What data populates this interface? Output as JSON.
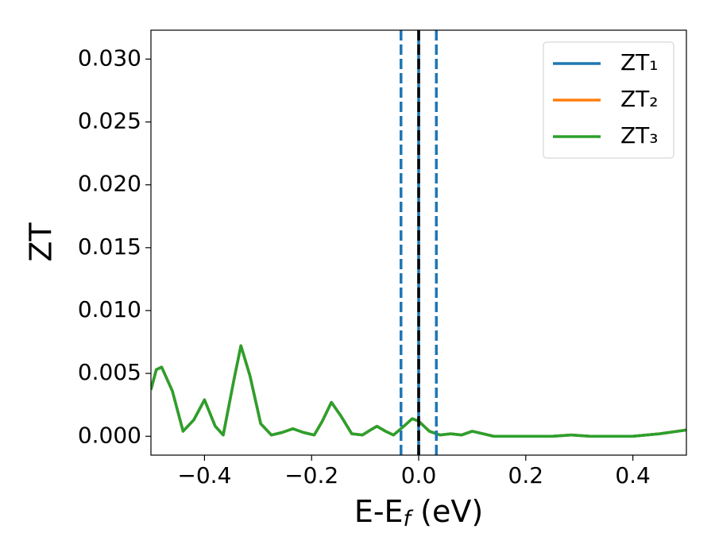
{
  "chart_data": {
    "type": "line",
    "y_label": "ZT",
    "x_label": {
      "main": "E-E",
      "sub": "f",
      "rest": " (eV)"
    },
    "x": [
      -0.5,
      -0.49,
      -0.48,
      -0.46,
      -0.44,
      -0.42,
      -0.4,
      -0.38,
      -0.365,
      -0.345,
      -0.332,
      -0.315,
      -0.295,
      -0.275,
      -0.255,
      -0.235,
      -0.215,
      -0.195,
      -0.18,
      -0.163,
      -0.145,
      -0.125,
      -0.105,
      -0.09,
      -0.078,
      -0.062,
      -0.047,
      -0.025,
      -0.012,
      0.0,
      0.02,
      0.04,
      0.06,
      0.08,
      0.1,
      0.12,
      0.14,
      0.2,
      0.25,
      0.285,
      0.32,
      0.4,
      0.45,
      0.5
    ],
    "series": [
      {
        "name": "ZT₁",
        "color": "#1f77b4",
        "values": [
          0.0037,
          0.0053,
          0.0055,
          0.0036,
          0.0004,
          0.0013,
          0.0029,
          0.0008,
          0.0001,
          0.0045,
          0.0072,
          0.0048,
          0.001,
          0.0001,
          0.0003,
          0.0006,
          0.0003,
          0.0001,
          0.0012,
          0.0027,
          0.0016,
          0.0002,
          0.0001,
          0.0005,
          0.0008,
          0.0004,
          0.0001,
          0.0009,
          0.0014,
          0.0012,
          0.0004,
          0.0001,
          0.0002,
          0.0001,
          0.0004,
          0.0002,
          0.0,
          0.0,
          0.0,
          0.0001,
          0.0,
          0.0,
          0.0002,
          0.0005
        ]
      },
      {
        "name": "ZT₂",
        "color": "#ff7f0e",
        "values": [
          0.0037,
          0.0053,
          0.0055,
          0.0036,
          0.0004,
          0.0013,
          0.0029,
          0.0008,
          0.0001,
          0.0045,
          0.0072,
          0.0048,
          0.001,
          0.0001,
          0.0003,
          0.0006,
          0.0003,
          0.0001,
          0.0012,
          0.0027,
          0.0016,
          0.0002,
          0.0001,
          0.0005,
          0.0008,
          0.0004,
          0.0001,
          0.0009,
          0.0014,
          0.0012,
          0.0004,
          0.0001,
          0.0002,
          0.0001,
          0.0004,
          0.0002,
          0.0,
          0.0,
          0.0,
          0.0001,
          0.0,
          0.0,
          0.0002,
          0.0005
        ]
      },
      {
        "name": "ZT₃",
        "color": "#2ca02c",
        "values": [
          0.0037,
          0.0053,
          0.0055,
          0.0036,
          0.0004,
          0.0013,
          0.0029,
          0.0008,
          0.0001,
          0.0045,
          0.0072,
          0.0048,
          0.001,
          0.0001,
          0.0003,
          0.0006,
          0.0003,
          0.0001,
          0.0012,
          0.0027,
          0.0016,
          0.0002,
          0.0001,
          0.0005,
          0.0008,
          0.0004,
          0.0001,
          0.0009,
          0.0014,
          0.0012,
          0.0004,
          0.0001,
          0.0002,
          0.0001,
          0.0004,
          0.0002,
          0.0,
          0.0,
          0.0,
          0.0001,
          0.0,
          0.0,
          0.0002,
          0.0005
        ]
      }
    ],
    "vlines": [
      {
        "x": -0.033,
        "color": "#1f77b4",
        "style": "dashed"
      },
      {
        "x": 0.0,
        "color": "#1f77b4",
        "style": "solid"
      },
      {
        "x": 0.0,
        "color": "#000000",
        "style": "dashed"
      },
      {
        "x": 0.033,
        "color": "#1f77b4",
        "style": "dashed"
      }
    ],
    "xlim": [
      -0.5,
      0.5
    ],
    "xticks": [
      {
        "value": -0.4,
        "label": "−0.4"
      },
      {
        "value": -0.2,
        "label": "−0.2"
      },
      {
        "value": 0.0,
        "label": "0.0"
      },
      0.2,
      0.4
    ],
    "ylim": [
      -0.0015,
      0.0323
    ],
    "yticks": [
      {
        "value": 0.0,
        "label": "0.000"
      },
      0.005,
      {
        "value": 0.01,
        "label": "0.010"
      },
      0.015,
      {
        "value": 0.02,
        "label": "0.020"
      },
      0.025,
      {
        "value": 0.03,
        "label": "0.030"
      }
    ],
    "legend": "upper right",
    "grid": false
  }
}
